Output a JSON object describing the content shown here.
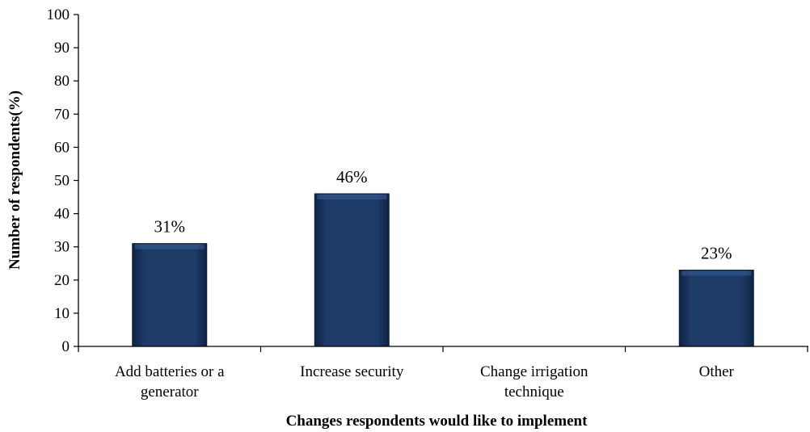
{
  "chart_data": {
    "type": "bar",
    "categories": [
      [
        "Add batteries or a",
        "generator"
      ],
      [
        "Increase security"
      ],
      [
        "Change irrigation",
        "technique"
      ],
      [
        "Other"
      ]
    ],
    "values": [
      31,
      46,
      null,
      23
    ],
    "data_labels": [
      "31%",
      "46%",
      "",
      "23%"
    ],
    "title": "",
    "xlabel": "Changes respondents would like to implement",
    "ylabel": "Number of respondents(%)",
    "ylim": [
      0,
      100
    ],
    "yticks": [
      "0",
      "10",
      "20",
      "30",
      "40",
      "50",
      "60",
      "70",
      "80",
      "90",
      "100"
    ],
    "grid": false,
    "legend": "none",
    "colors": {
      "bar": "#1e3a66",
      "bar_light": "#3b5f96",
      "bar_dark": "#0f2142",
      "axis": "#000000"
    }
  }
}
